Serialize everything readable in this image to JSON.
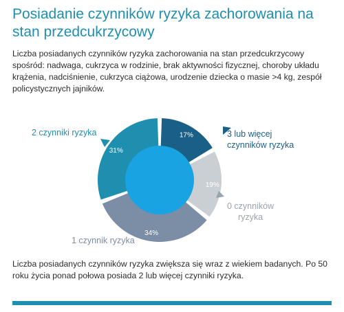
{
  "title": "Posiadanie czynników ryzyka zachorowania na stan przedcukrzycowy",
  "intro": "Liczba posiadanych czynników ryzyka zachorowania na stan przedcukrzycowy spośród: nadwaga, cukrzyca w rodzinie, brak aktywności fizycznej, choroby układu krążenia, nadciśnienie, cukrzyca ciążowa, urodzenie dziecka o masie >4 kg, zespół policystycznych jajników.",
  "chart_data": {
    "type": "pie",
    "style": "donut",
    "slices": [
      {
        "label": "3 lub więcej czynników ryzyka",
        "value": 17,
        "value_label": "17%",
        "color": "#1a5f86",
        "label_color": "#1a5f86"
      },
      {
        "label": "0 czynników ryzyka",
        "value": 19,
        "value_label": "19%",
        "color": "#c9cfd3",
        "label_color": "#9aa4ab"
      },
      {
        "label": "1 czynnik ryzyka",
        "value": 34,
        "value_label": "34%",
        "color": "#7b8ea6",
        "label_color": "#7b8ea6"
      },
      {
        "label": "2 czynniki ryzyka",
        "value": 31,
        "value_label": "31%",
        "color": "#1f8fb0",
        "label_color": "#1f8fb0"
      }
    ],
    "center_color": "#1aa3e2"
  },
  "labels": {
    "two": "2 czynniki ryzyka",
    "three_line1": "3 lub więcej",
    "three_line2": "czynników ryzyka",
    "zero_line1": "0 czynników",
    "zero_line2": "ryzyka",
    "one": "1 czynnik ryzyka"
  },
  "footer": "Liczba posiadanych czynników ryzyka zwiększa się wraz z wiekiem badanych. Po 50 roku życia ponad połowa posiada 2 lub więcej czynniki ryzyka.",
  "accent_color": "#1f8fb0"
}
